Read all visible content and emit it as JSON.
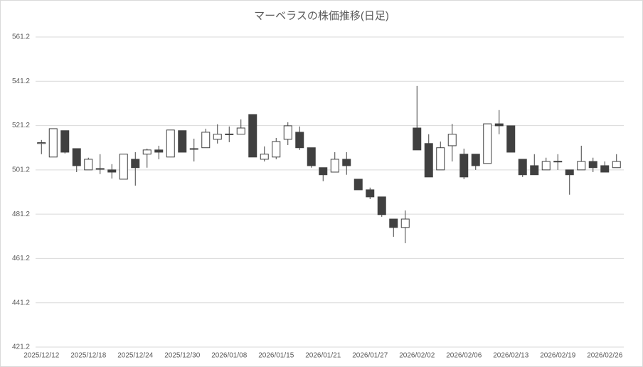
{
  "chart_data": {
    "type": "candlestick",
    "title": "マーベラスの株価推移(日足)",
    "categories": [
      "2025/12/12",
      null,
      null,
      null,
      "2025/12/18",
      null,
      null,
      null,
      "2025/12/24",
      null,
      null,
      null,
      "2025/12/30",
      null,
      null,
      null,
      "2026/01/08",
      null,
      null,
      null,
      "2026/01/15",
      null,
      null,
      null,
      "2026/01/21",
      null,
      null,
      null,
      "2026/01/27",
      null,
      null,
      null,
      "2026/02/02",
      null,
      null,
      null,
      "2026/02/06",
      null,
      null,
      null,
      "2026/02/13",
      null,
      null,
      null,
      "2026/02/19",
      null,
      null,
      null,
      "2026/02/26",
      null
    ],
    "open": [
      513.1,
      507,
      518.9,
      510.8,
      501.2,
      501.8,
      501.2,
      497,
      506,
      508.3,
      510.2,
      507,
      518.9,
      510.8,
      511.2,
      515,
      517.3,
      517.3,
      526.2,
      506,
      507,
      515,
      518.2,
      511.2,
      502.2,
      500.2,
      506,
      497,
      492.2,
      489,
      479,
      475.2,
      520.1,
      513.1,
      501.2,
      512.1,
      508.3,
      508.3,
      504.1,
      522,
      521.1,
      506,
      503.1,
      501.2,
      505,
      501.2,
      501.2,
      505,
      503.1,
      502.2
    ],
    "high": [
      514.7,
      519.8,
      518.9,
      510.8,
      506.7,
      508.3,
      503.8,
      508.3,
      509.2,
      510.8,
      512.1,
      519.2,
      518.9,
      515.3,
      519.8,
      521.8,
      520.8,
      524,
      526.2,
      511.8,
      515.6,
      522.7,
      520.8,
      511.2,
      502.2,
      509.2,
      509.2,
      497,
      493.2,
      489,
      479,
      482.9,
      539.1,
      517.3,
      514,
      522,
      510.8,
      508.3,
      522,
      528.2,
      521.1,
      506,
      508.3,
      506.7,
      508.3,
      501.2,
      512.1,
      506.7,
      505,
      508.3
    ],
    "low": [
      508.3,
      507,
      508.6,
      500.2,
      501.2,
      499.3,
      497.3,
      497,
      494.1,
      502.2,
      506,
      507,
      509.2,
      505,
      511.2,
      513.1,
      513.7,
      517.3,
      507,
      505,
      506,
      512.4,
      510.2,
      502.2,
      496.1,
      500.2,
      499,
      492.2,
      488,
      480,
      471,
      468.1,
      510.2,
      498,
      501.2,
      505,
      497,
      501.2,
      504.1,
      517.3,
      509.2,
      498,
      499,
      501.2,
      501.2,
      490,
      501.2,
      500.2,
      500.2,
      502.2
    ],
    "close": [
      513.5,
      519.8,
      509.2,
      503.1,
      506,
      501.6,
      500.2,
      508.3,
      502.2,
      510.2,
      509.2,
      519.2,
      509.2,
      510.6,
      518.2,
      517.3,
      517.4,
      520.1,
      507,
      508.3,
      514,
      521.1,
      511.2,
      503.1,
      499,
      506,
      503.1,
      492.2,
      489,
      481,
      475.2,
      479,
      510.2,
      498,
      511.2,
      517.3,
      498,
      503.1,
      522,
      521.1,
      509.2,
      499,
      499,
      505,
      505.1,
      499,
      505,
      502.2,
      500.2,
      505
    ],
    "up_color": "#ffffff",
    "down_color": "#404040",
    "edge_color": "#404040",
    "ylim": [
      421.2,
      561.2
    ],
    "yticks": [
      421.2,
      441.2,
      461.2,
      481.2,
      501.2,
      521.2,
      541.2,
      561.2
    ],
    "grid": true
  }
}
